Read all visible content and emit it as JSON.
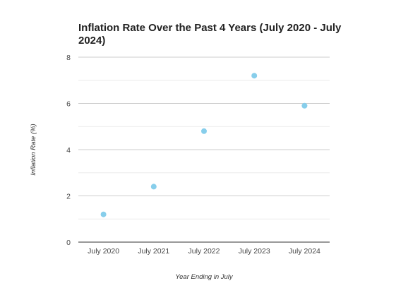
{
  "chart_data": {
    "type": "scatter",
    "title_line1": "Inflation Rate Over the Past 4 Years (July 2020 - July",
    "title_line2": "2024)",
    "xlabel": "Year Ending in July",
    "ylabel": "Inflation Rate (%)",
    "categories": [
      "July 2020",
      "July 2021",
      "July 2022",
      "July 2023",
      "July 2024"
    ],
    "values": [
      1.2,
      2.4,
      4.8,
      7.2,
      5.9
    ],
    "ylim": [
      0,
      8
    ],
    "yticks": [
      "0",
      "2",
      "4",
      "6",
      "8"
    ],
    "grid": true,
    "legend": "none",
    "point_color": "#87ceeb"
  }
}
